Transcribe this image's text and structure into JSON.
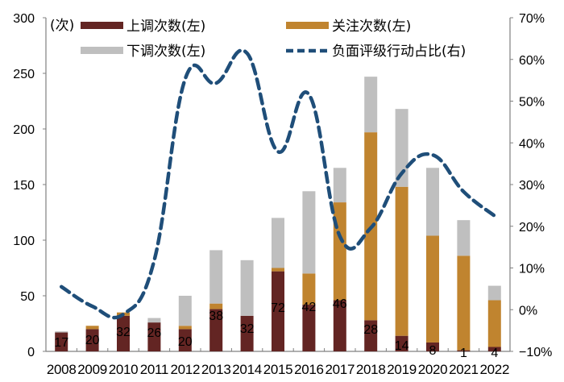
{
  "chart_data": {
    "type": "bar",
    "subtype": "stacked-bar-with-line",
    "title": "",
    "unit_label": "(次)",
    "categories": [
      "2008",
      "2009",
      "2010",
      "2011",
      "2012",
      "2013",
      "2014",
      "2015",
      "2016",
      "2017",
      "2018",
      "2019",
      "2020",
      "2021",
      "2022"
    ],
    "series": [
      {
        "name": "上调次数(左)",
        "axis": "left",
        "type": "bar",
        "color": "#632523",
        "values": [
          17,
          20,
          32,
          26,
          20,
          38,
          32,
          72,
          42,
          46,
          28,
          14,
          8,
          1,
          4
        ],
        "data_labels": true
      },
      {
        "name": "关注次数(左)",
        "axis": "left",
        "type": "bar",
        "color": "#C0842F",
        "values": [
          0,
          3,
          3,
          0,
          3,
          5,
          0,
          3,
          28,
          88,
          169,
          134,
          96,
          85,
          42
        ]
      },
      {
        "name": "下调次数(左)",
        "axis": "left",
        "type": "bar",
        "color": "#BFBFBF",
        "values": [
          1,
          0,
          0,
          4,
          27,
          48,
          50,
          45,
          74,
          31,
          50,
          70,
          61,
          32,
          13
        ]
      },
      {
        "name": "负面评级行动占比(右)",
        "axis": "right",
        "type": "line",
        "style": "dashed",
        "color": "#1F4E79",
        "values": [
          5.5,
          0.8,
          -1.1,
          11.8,
          55.3,
          54.3,
          61.5,
          37.9,
          51.6,
          17.6,
          19.6,
          32.7,
          37.1,
          28.3,
          22.5
        ]
      }
    ],
    "left_axis": {
      "min": 0,
      "max": 300,
      "step": 50,
      "ticks": [
        "0",
        "50",
        "100",
        "150",
        "200",
        "250",
        "300"
      ]
    },
    "right_axis": {
      "min": -10,
      "max": 70,
      "step": 10,
      "ticks": [
        "-10%",
        "0%",
        "10%",
        "20%",
        "30%",
        "40%",
        "50%",
        "60%",
        "70%"
      ]
    },
    "xlabel": "",
    "ylabel": "",
    "grid": false,
    "legend": {
      "position": "top-inside",
      "columns": 2,
      "entries": [
        "上调次数(左)",
        "关注次数(左)",
        "下调次数(左)",
        "负面评级行动占比(右)"
      ]
    }
  }
}
